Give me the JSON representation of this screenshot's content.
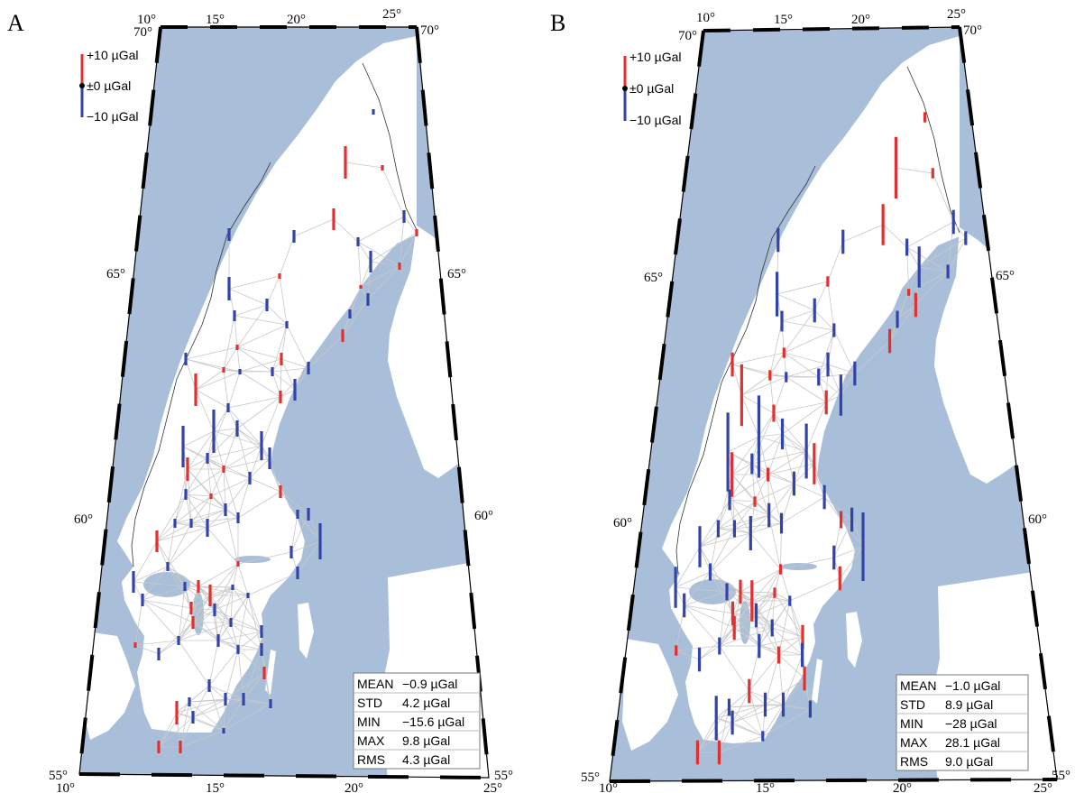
{
  "colors": {
    "sea": "#a9bfd9",
    "land": "#ffffff",
    "positive": "#e03030",
    "negative": "#3344a8",
    "network": "#c8c8c8",
    "frame_dark": "#000000"
  },
  "ticks": {
    "lon": [
      "10°",
      "15°",
      "20°",
      "25°"
    ],
    "lat_55": "55°",
    "lat_60": "60°",
    "lat_65": "65°",
    "lat_70": "70°"
  },
  "legend": {
    "plus": "+10 µGal",
    "zero": "±0 µGal",
    "minus": "−10 µGal"
  },
  "panels": [
    {
      "letter": "A",
      "stats": [
        {
          "label": "MEAN",
          "value": "−0.9 µGal"
        },
        {
          "label": "STD",
          "value": "4.2 µGal"
        },
        {
          "label": "MIN",
          "value": "−15.6 µGal"
        },
        {
          "label": "MAX",
          "value": "9.8 µGal"
        },
        {
          "label": "RMS",
          "value": "4.3 µGal"
        }
      ]
    },
    {
      "letter": "B",
      "stats": [
        {
          "label": "MEAN",
          "value": "−1.0 µGal"
        },
        {
          "label": "STD",
          "value": "8.9 µGal"
        },
        {
          "label": "MIN",
          "value": "−28 µGal"
        },
        {
          "label": "MAX",
          "value": "28.1 µGal"
        },
        {
          "label": "RMS",
          "value": "9.0 µGal"
        }
      ]
    }
  ]
}
